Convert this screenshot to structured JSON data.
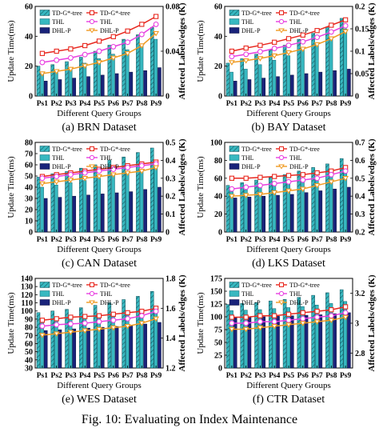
{
  "figure": {
    "caption": "Fig. 10: Evaluating on Index Maintenance"
  },
  "legend_labels": [
    "TD-G*-tree",
    "TD-G*-tree",
    "THL",
    "THL",
    "DHL-P",
    "DHL-P"
  ],
  "colors": {
    "dark_blue": "#1f2fc8",
    "teal": "#37b8c0",
    "navy": "#19237a",
    "red": "#e8281f",
    "magenta": "#e83fe0",
    "orange": "#f09a22"
  },
  "chart_data": [
    {
      "type": "bar",
      "caption": "(a) BRN Dataset",
      "categories": [
        "Ps1",
        "Ps2",
        "Ps3",
        "Ps4",
        "Ps5",
        "Ps6",
        "Ps7",
        "Ps8",
        "Ps9"
      ],
      "xlabel": "Different Query Groups",
      "ylabel": "Update Time(ms)",
      "y2label": "Affected Labels/edges (K)",
      "ylim": [
        0,
        60
      ],
      "yticks": [
        0,
        20,
        40,
        60
      ],
      "y2lim": [
        0.0,
        0.08
      ],
      "y2ticks": [
        0.0,
        0.04,
        0.08
      ],
      "bars": [
        {
          "name": "TD-G*-tree",
          "values": [
            20,
            21,
            23,
            26,
            30,
            34,
            38,
            41,
            46
          ]
        },
        {
          "name": "THL",
          "values": [
            15,
            17,
            19,
            22,
            25,
            28,
            31,
            34,
            38
          ]
        },
        {
          "name": "DHL-P",
          "values": [
            10,
            11,
            12,
            13,
            14,
            15,
            16,
            17,
            19
          ]
        }
      ],
      "lines": [
        {
          "name": "TD-G*-tree",
          "values": [
            0.038,
            0.04,
            0.042,
            0.045,
            0.049,
            0.053,
            0.058,
            0.064,
            0.071
          ]
        },
        {
          "name": "THL",
          "values": [
            0.03,
            0.032,
            0.034,
            0.037,
            0.04,
            0.044,
            0.048,
            0.055,
            0.064
          ]
        },
        {
          "name": "DHL-P",
          "values": [
            0.02,
            0.022,
            0.024,
            0.027,
            0.03,
            0.034,
            0.038,
            0.045,
            0.056
          ]
        }
      ]
    },
    {
      "type": "bar",
      "caption": "(b) BAY Dataset",
      "categories": [
        "Ps1",
        "Ps2",
        "Ps3",
        "Ps4",
        "Ps5",
        "Ps6",
        "Ps7",
        "Ps8",
        "Ps9"
      ],
      "xlabel": "Different Query Groups",
      "ylabel": "Update Time(ms)",
      "y2label": "Affected Labels/edges (K)",
      "ylim": [
        0,
        60
      ],
      "yticks": [
        0,
        20,
        40,
        60
      ],
      "y2lim": [
        0.0,
        0.2
      ],
      "y2ticks": [
        0.0,
        0.05,
        0.1,
        0.15,
        0.2
      ],
      "bars": [
        {
          "name": "TD-G*-tree",
          "values": [
            22,
            25,
            28,
            31,
            34,
            38,
            42,
            46,
            52
          ]
        },
        {
          "name": "THL",
          "values": [
            16,
            18,
            21,
            24,
            27,
            31,
            35,
            39,
            45
          ]
        },
        {
          "name": "DHL-P",
          "values": [
            10,
            11,
            12,
            13,
            14,
            15,
            16,
            17,
            18
          ]
        }
      ],
      "lines": [
        {
          "name": "TD-G*-tree",
          "values": [
            0.1,
            0.107,
            0.113,
            0.12,
            0.128,
            0.136,
            0.146,
            0.158,
            0.17
          ]
        },
        {
          "name": "THL",
          "values": [
            0.088,
            0.093,
            0.099,
            0.106,
            0.113,
            0.121,
            0.131,
            0.143,
            0.157
          ]
        },
        {
          "name": "DHL-P",
          "values": [
            0.075,
            0.079,
            0.084,
            0.09,
            0.097,
            0.105,
            0.115,
            0.128,
            0.144
          ]
        }
      ]
    },
    {
      "type": "bar",
      "caption": "(c) CAN Dataset",
      "categories": [
        "Ps1",
        "Ps2",
        "Ps3",
        "Ps4",
        "Ps5",
        "Ps6",
        "Ps7",
        "Ps8",
        "Ps9"
      ],
      "xlabel": "Different Query Groups",
      "ylabel": "Update Time(ms)",
      "y2label": "Affected Labels/edges (K)",
      "ylim": [
        0,
        80
      ],
      "yticks": [
        0,
        10,
        20,
        30,
        40,
        50,
        60,
        70,
        80
      ],
      "y2lim": [
        0.0,
        0.5
      ],
      "y2ticks": [
        0.0,
        0.1,
        0.2,
        0.3,
        0.4,
        0.5
      ],
      "bars": [
        {
          "name": "TD-G*-tree",
          "values": [
            49,
            52,
            54,
            57,
            60,
            64,
            67,
            71,
            75
          ]
        },
        {
          "name": "THL",
          "values": [
            40,
            42,
            44,
            46,
            48,
            51,
            53,
            56,
            60
          ]
        },
        {
          "name": "DHL-P",
          "values": [
            30,
            31,
            32,
            33,
            34,
            35,
            36,
            38,
            40
          ]
        }
      ],
      "lines": [
        {
          "name": "TD-G*-tree",
          "values": [
            0.31,
            0.32,
            0.33,
            0.34,
            0.35,
            0.36,
            0.37,
            0.38,
            0.39
          ]
        },
        {
          "name": "THL",
          "values": [
            0.3,
            0.31,
            0.32,
            0.33,
            0.34,
            0.35,
            0.36,
            0.37,
            0.38
          ]
        },
        {
          "name": "DHL-P",
          "values": [
            0.27,
            0.28,
            0.29,
            0.3,
            0.31,
            0.32,
            0.33,
            0.34,
            0.36
          ]
        }
      ]
    },
    {
      "type": "bar",
      "caption": "(d) LKS Dataset",
      "categories": [
        "Ps1",
        "Ps2",
        "Ps3",
        "Ps4",
        "Ps5",
        "Ps6",
        "Ps7",
        "Ps8",
        "Ps9"
      ],
      "xlabel": "Different Query Groups",
      "ylabel": "Update Time(ms)",
      "y2label": "Affected Labels/edges (K)",
      "ylim": [
        0,
        100
      ],
      "yticks": [
        0,
        20,
        40,
        60,
        80,
        100
      ],
      "y2lim": [
        0.2,
        0.7
      ],
      "y2ticks": [
        0.2,
        0.3,
        0.4,
        0.5,
        0.6,
        0.7
      ],
      "bars": [
        {
          "name": "TD-G*-tree",
          "values": [
            52,
            55,
            58,
            61,
            64,
            68,
            72,
            76,
            82
          ]
        },
        {
          "name": "THL",
          "values": [
            45,
            47,
            50,
            52,
            55,
            58,
            61,
            64,
            70
          ]
        },
        {
          "name": "DHL-P",
          "values": [
            38,
            39,
            40,
            41,
            42,
            44,
            46,
            48,
            50
          ]
        }
      ],
      "lines": [
        {
          "name": "TD-G*-tree",
          "values": [
            0.5,
            0.5,
            0.505,
            0.51,
            0.515,
            0.52,
            0.53,
            0.54,
            0.56
          ]
        },
        {
          "name": "THL",
          "values": [
            0.44,
            0.45,
            0.46,
            0.47,
            0.48,
            0.49,
            0.5,
            0.52,
            0.54
          ]
        },
        {
          "name": "DHL-P",
          "values": [
            0.4,
            0.405,
            0.41,
            0.42,
            0.43,
            0.44,
            0.46,
            0.48,
            0.5
          ]
        }
      ]
    },
    {
      "type": "bar",
      "caption": "(e) WES Dataset",
      "categories": [
        "Ps1",
        "Ps2",
        "Ps3",
        "Ps4",
        "Ps5",
        "Ps6",
        "Ps7",
        "Ps8",
        "Ps9"
      ],
      "xlabel": "Different Query Groups",
      "ylabel": "Update Time(ms)",
      "y2label": "Affected Labels/edges (K)",
      "ylim": [
        30,
        140
      ],
      "yticks": [
        30,
        40,
        50,
        60,
        70,
        80,
        90,
        100,
        110,
        120,
        130,
        140
      ],
      "y2lim": [
        1.2,
        1.8
      ],
      "y2ticks": [
        1.2,
        1.4,
        1.6,
        1.8
      ],
      "bars": [
        {
          "name": "TD-G*-tree",
          "values": [
            98,
            100,
            102,
            104,
            107,
            110,
            114,
            118,
            124
          ]
        },
        {
          "name": "THL",
          "values": [
            88,
            89,
            90,
            92,
            94,
            96,
            99,
            102,
            106
          ]
        },
        {
          "name": "DHL-P",
          "values": [
            76,
            77,
            78,
            79,
            80,
            81,
            82,
            84,
            86
          ]
        }
      ],
      "lines": [
        {
          "name": "TD-G*-tree",
          "values": [
            1.52,
            1.53,
            1.54,
            1.545,
            1.55,
            1.56,
            1.57,
            1.58,
            1.6
          ]
        },
        {
          "name": "THL",
          "values": [
            1.48,
            1.49,
            1.495,
            1.5,
            1.51,
            1.52,
            1.53,
            1.55,
            1.58
          ]
        },
        {
          "name": "DHL-P",
          "values": [
            1.42,
            1.43,
            1.44,
            1.45,
            1.46,
            1.47,
            1.48,
            1.5,
            1.53
          ]
        }
      ]
    },
    {
      "type": "bar",
      "caption": "(f) CTR Dataset",
      "categories": [
        "Ps1",
        "Ps2",
        "Ps3",
        "Ps4",
        "Ps5",
        "Ps6",
        "Ps7",
        "Ps8",
        "Ps9"
      ],
      "xlabel": "Different Query Groups",
      "ylabel": "Update Time(ms)",
      "y2label": "Affected Labels/edges (K)",
      "ylim": [
        0,
        175
      ],
      "yticks": [
        0,
        25,
        50,
        75,
        100,
        125,
        150,
        175
      ],
      "y2lim": [
        2.7,
        3.3
      ],
      "y2ticks": [
        2.8,
        3.0,
        3.2
      ],
      "bars": [
        {
          "name": "TD-G*-tree",
          "values": [
            124,
            126,
            128,
            131,
            134,
            138,
            142,
            147,
            153
          ]
        },
        {
          "name": "THL",
          "values": [
            112,
            113,
            114,
            116,
            118,
            120,
            123,
            126,
            130
          ]
        },
        {
          "name": "DHL-P",
          "values": [
            98,
            99,
            100,
            101,
            102,
            103,
            104,
            106,
            108
          ]
        }
      ],
      "lines": [
        {
          "name": "TD-G*-tree",
          "values": [
            3.04,
            3.04,
            3.05,
            3.05,
            3.06,
            3.07,
            3.08,
            3.09,
            3.11
          ]
        },
        {
          "name": "THL",
          "values": [
            3.0,
            3.0,
            3.01,
            3.01,
            3.02,
            3.03,
            3.04,
            3.05,
            3.07
          ]
        },
        {
          "name": "DHL-P",
          "values": [
            2.96,
            2.96,
            2.97,
            2.98,
            2.99,
            3.0,
            3.01,
            3.02,
            3.04
          ]
        }
      ]
    }
  ]
}
